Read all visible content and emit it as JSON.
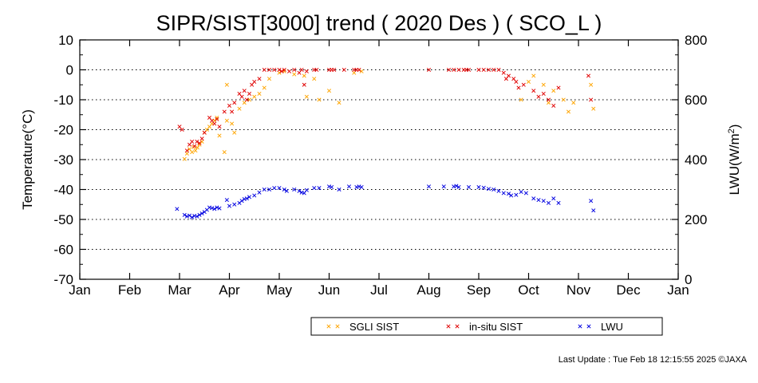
{
  "chart_data": {
    "type": "scatter",
    "title": "SIPR/SIST[3000] trend ( 2020 Des ) ( SCO_L )",
    "ylabel": "Temperature(°C)",
    "y2label": "LWU(W/m",
    "y2label_sup": "2",
    "y2label_end": ")",
    "ylim": [
      -70,
      10
    ],
    "y2lim": [
      0,
      800
    ],
    "yticks": [
      "10",
      "0",
      "-10",
      "-20",
      "-30",
      "-40",
      "-50",
      "-60",
      "-70"
    ],
    "y2ticks": [
      "800",
      "600",
      "400",
      "200",
      "0"
    ],
    "xticks": [
      "Jan",
      "Feb",
      "Mar",
      "Apr",
      "May",
      "Jun",
      "Jul",
      "Aug",
      "Sep",
      "Oct",
      "Nov",
      "Dec",
      "Jan"
    ],
    "grid": "horizontal dotted",
    "legend_position": "bottom-right",
    "series": [
      {
        "name": "SGLI SIST",
        "color": "#ffa500",
        "axis": "left",
        "marker": "x",
        "points": [
          [
            2.1,
            -29.8
          ],
          [
            2.15,
            -28
          ],
          [
            2.2,
            -26.5
          ],
          [
            2.25,
            -27.5
          ],
          [
            2.28,
            -25.8
          ],
          [
            2.32,
            -27
          ],
          [
            2.36,
            -26
          ],
          [
            2.4,
            -25
          ],
          [
            2.45,
            -24
          ],
          [
            2.5,
            -21
          ],
          [
            2.55,
            -20
          ],
          [
            2.6,
            -19
          ],
          [
            2.65,
            -18
          ],
          [
            2.7,
            -17
          ],
          [
            2.75,
            -16
          ],
          [
            2.8,
            -22
          ],
          [
            2.9,
            -27.5
          ],
          [
            2.95,
            -17
          ],
          [
            3.05,
            -18
          ],
          [
            3.1,
            -21
          ],
          [
            2.95,
            -5
          ],
          [
            3.2,
            -13
          ],
          [
            3.3,
            -11
          ],
          [
            3.4,
            -10
          ],
          [
            3.5,
            -9
          ],
          [
            3.6,
            -8
          ],
          [
            3.7,
            -6
          ],
          [
            3.8,
            -3
          ],
          [
            4.0,
            -1
          ],
          [
            4.1,
            -0.5
          ],
          [
            4.3,
            -1.5
          ],
          [
            4.5,
            -2
          ],
          [
            4.55,
            -9
          ],
          [
            4.7,
            -3
          ],
          [
            4.8,
            -10
          ],
          [
            5.0,
            -7
          ],
          [
            5.2,
            -11
          ],
          [
            5.5,
            -1
          ],
          [
            5.65,
            -0.5
          ],
          [
            8.85,
            -10
          ],
          [
            9.0,
            -4
          ],
          [
            9.1,
            -2
          ],
          [
            9.3,
            -5
          ],
          [
            9.4,
            -11
          ],
          [
            9.5,
            -7
          ],
          [
            9.7,
            -10
          ],
          [
            9.8,
            -14
          ],
          [
            9.9,
            -11
          ],
          [
            10.25,
            -5
          ],
          [
            10.3,
            -13
          ]
        ]
      },
      {
        "name": "in-situ SIST",
        "color": "#e00000",
        "axis": "left",
        "marker": "x",
        "points": [
          [
            2.0,
            -19
          ],
          [
            2.05,
            -20
          ],
          [
            2.15,
            -27
          ],
          [
            2.2,
            -25
          ],
          [
            2.25,
            -24
          ],
          [
            2.3,
            -25.5
          ],
          [
            2.35,
            -24
          ],
          [
            2.4,
            -24.5
          ],
          [
            2.45,
            -23
          ],
          [
            2.5,
            -21
          ],
          [
            2.6,
            -16
          ],
          [
            2.65,
            -17
          ],
          [
            2.7,
            -18
          ],
          [
            2.75,
            -16.5
          ],
          [
            2.8,
            -19
          ],
          [
            2.9,
            -14
          ],
          [
            3.0,
            -12
          ],
          [
            3.05,
            -14
          ],
          [
            3.1,
            -11
          ],
          [
            3.2,
            -8
          ],
          [
            3.25,
            -9
          ],
          [
            3.3,
            -7
          ],
          [
            3.35,
            -10
          ],
          [
            3.4,
            -8
          ],
          [
            3.45,
            -5
          ],
          [
            3.5,
            -4
          ],
          [
            3.6,
            -3
          ],
          [
            3.7,
            0
          ],
          [
            3.8,
            0
          ],
          [
            3.9,
            0
          ],
          [
            4.0,
            0
          ],
          [
            4.05,
            -0.5
          ],
          [
            4.1,
            0
          ],
          [
            4.2,
            -0.5
          ],
          [
            4.3,
            0
          ],
          [
            4.4,
            -1
          ],
          [
            4.45,
            0
          ],
          [
            4.5,
            -5
          ],
          [
            4.55,
            -0.5
          ],
          [
            4.7,
            0
          ],
          [
            4.75,
            0
          ],
          [
            5.0,
            0
          ],
          [
            5.05,
            0
          ],
          [
            5.1,
            0
          ],
          [
            5.3,
            0
          ],
          [
            5.5,
            0
          ],
          [
            5.55,
            0
          ],
          [
            5.6,
            0
          ],
          [
            7.0,
            0
          ],
          [
            7.4,
            0
          ],
          [
            7.5,
            0
          ],
          [
            7.6,
            0
          ],
          [
            7.7,
            0
          ],
          [
            7.75,
            0
          ],
          [
            7.8,
            0
          ],
          [
            8.0,
            0
          ],
          [
            8.1,
            0
          ],
          [
            8.2,
            0
          ],
          [
            8.3,
            0
          ],
          [
            8.4,
            0
          ],
          [
            8.5,
            -1
          ],
          [
            8.55,
            -3
          ],
          [
            8.6,
            -2
          ],
          [
            8.7,
            -3
          ],
          [
            8.75,
            -4
          ],
          [
            8.8,
            -6
          ],
          [
            8.9,
            -5
          ],
          [
            9.1,
            -7
          ],
          [
            9.2,
            -9
          ],
          [
            9.3,
            -8
          ],
          [
            9.4,
            -10
          ],
          [
            9.5,
            -12
          ],
          [
            9.6,
            -6
          ],
          [
            10.2,
            -2
          ],
          [
            10.25,
            -10
          ]
        ]
      },
      {
        "name": "LWU",
        "color": "#0000e0",
        "axis": "right",
        "marker": "x",
        "points": [
          [
            1.95,
            235
          ],
          [
            2.1,
            215
          ],
          [
            2.15,
            210
          ],
          [
            2.2,
            213
          ],
          [
            2.25,
            207
          ],
          [
            2.3,
            212
          ],
          [
            2.35,
            210
          ],
          [
            2.4,
            215
          ],
          [
            2.45,
            220
          ],
          [
            2.5,
            225
          ],
          [
            2.55,
            232
          ],
          [
            2.6,
            240
          ],
          [
            2.65,
            238
          ],
          [
            2.7,
            235
          ],
          [
            2.75,
            240
          ],
          [
            2.8,
            237
          ],
          [
            2.95,
            265
          ],
          [
            3.0,
            245
          ],
          [
            3.1,
            250
          ],
          [
            3.2,
            255
          ],
          [
            3.25,
            262
          ],
          [
            3.3,
            268
          ],
          [
            3.35,
            270
          ],
          [
            3.4,
            275
          ],
          [
            3.5,
            280
          ],
          [
            3.6,
            290
          ],
          [
            3.7,
            300
          ],
          [
            3.8,
            300
          ],
          [
            3.9,
            305
          ],
          [
            4.0,
            305
          ],
          [
            4.1,
            300
          ],
          [
            4.15,
            295
          ],
          [
            4.3,
            300
          ],
          [
            4.4,
            295
          ],
          [
            4.45,
            290
          ],
          [
            4.5,
            288
          ],
          [
            4.55,
            298
          ],
          [
            4.7,
            305
          ],
          [
            4.8,
            305
          ],
          [
            5.0,
            310
          ],
          [
            5.05,
            308
          ],
          [
            5.2,
            300
          ],
          [
            5.4,
            310
          ],
          [
            5.55,
            308
          ],
          [
            5.6,
            310
          ],
          [
            5.65,
            308
          ],
          [
            7.0,
            310
          ],
          [
            7.3,
            310
          ],
          [
            7.5,
            310
          ],
          [
            7.55,
            312
          ],
          [
            7.6,
            308
          ],
          [
            7.8,
            308
          ],
          [
            8.0,
            308
          ],
          [
            8.1,
            306
          ],
          [
            8.2,
            302
          ],
          [
            8.3,
            300
          ],
          [
            8.4,
            295
          ],
          [
            8.5,
            288
          ],
          [
            8.6,
            286
          ],
          [
            8.65,
            280
          ],
          [
            8.75,
            282
          ],
          [
            8.85,
            292
          ],
          [
            8.95,
            288
          ],
          [
            9.1,
            270
          ],
          [
            9.2,
            265
          ],
          [
            9.3,
            262
          ],
          [
            9.4,
            255
          ],
          [
            9.5,
            270
          ],
          [
            9.6,
            255
          ],
          [
            10.25,
            262
          ],
          [
            10.3,
            230
          ]
        ]
      }
    ]
  },
  "footer": "Last Update : Tue Feb 18 12:15:55 2025  ©JAXA"
}
